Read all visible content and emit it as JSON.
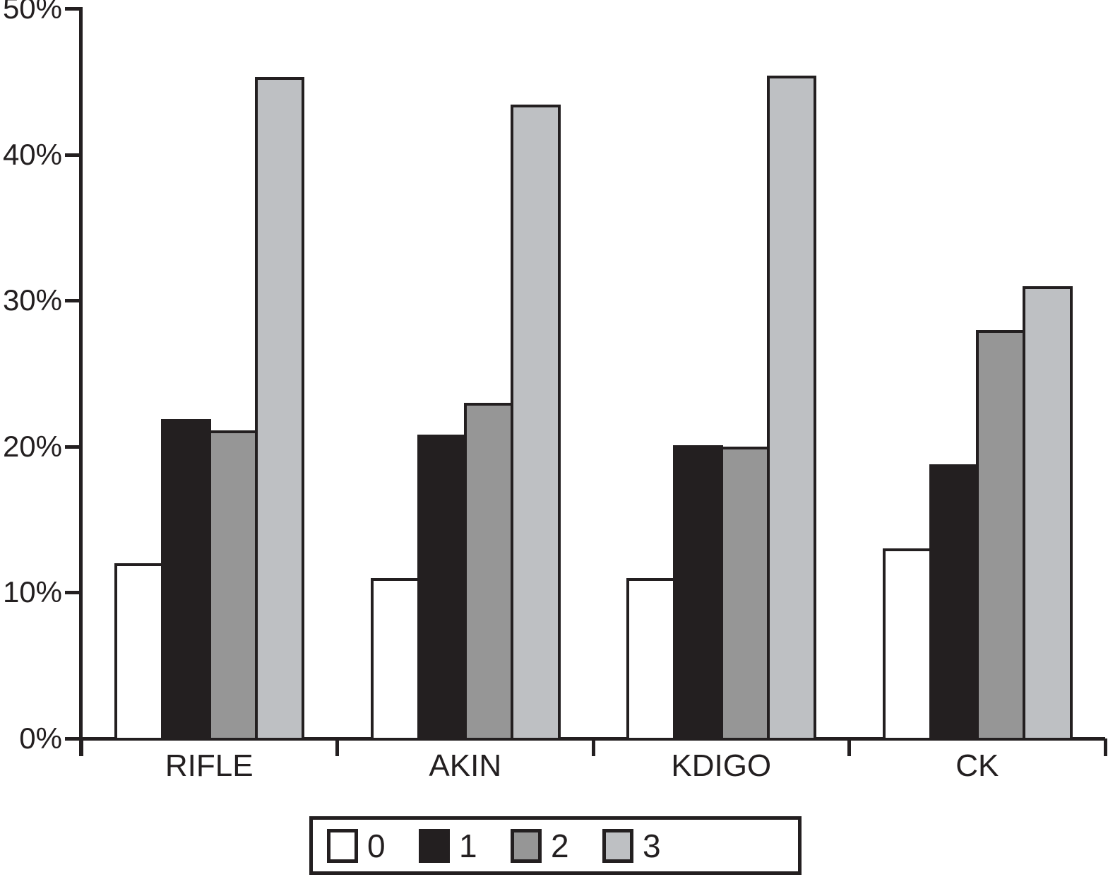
{
  "chart_data": {
    "type": "bar",
    "title": "",
    "xlabel": "",
    "ylabel": "",
    "categories": [
      "RIFLE",
      "AKIN",
      "KDIGO",
      "CK"
    ],
    "series": [
      {
        "name": "0",
        "color": "#ffffff",
        "values": [
          12,
          11,
          11,
          13
        ]
      },
      {
        "name": "1",
        "color": "#231f20",
        "values": [
          21.9,
          20.8,
          20.1,
          18.8
        ]
      },
      {
        "name": "2",
        "color": "#969696",
        "values": [
          21.1,
          23,
          20,
          28
        ]
      },
      {
        "name": "3",
        "color": "#bec0c3",
        "values": [
          45.3,
          43.4,
          45.4,
          31
        ]
      }
    ],
    "ylim": [
      0,
      50
    ],
    "y_tick_values": [
      0,
      10,
      20,
      30,
      40,
      50
    ],
    "y_tick_labels": [
      "0%",
      "10%",
      "20%",
      "30%",
      "40%",
      "50%"
    ],
    "grid": false,
    "legend_position": "bottom",
    "bar_edge_color": "#231f20",
    "axis_color": "#231f20",
    "background_color": "#ffffff"
  }
}
